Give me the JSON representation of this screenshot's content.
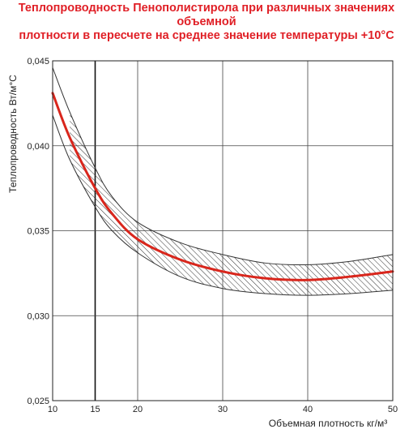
{
  "title_line1": "Теплопроводность Пенополистирола при различных значениях объемной",
  "title_line2": "плотности в пересчете на среднее значение температуры +10°С",
  "chart_data": {
    "type": "line",
    "title": "Теплопроводность Пенополистирола при различных значениях объемной плотности в пересчете на среднее значение температуры +10°С",
    "xlabel": "Объемная плотность кг/м³",
    "ylabel": "Теплопроводность Вт/м°С",
    "xlim": [
      10,
      50
    ],
    "ylim": [
      0.025,
      0.045
    ],
    "x_ticks": [
      "10",
      "15",
      "20",
      "30",
      "40",
      "50"
    ],
    "y_ticks": [
      "0,025",
      "0,030",
      "0,035",
      "0,040",
      "0,045"
    ],
    "grid": true,
    "highlight_x": 15,
    "series": [
      {
        "role": "mean",
        "color": "#d9261c",
        "x": [
          10,
          12,
          15,
          17,
          20,
          25,
          30,
          35,
          40,
          45,
          50
        ],
        "y": [
          0.0431,
          0.0405,
          0.0375,
          0.036,
          0.0345,
          0.0333,
          0.0326,
          0.0322,
          0.0321,
          0.0323,
          0.0326
        ]
      },
      {
        "role": "upper-bound",
        "color": "#333333",
        "x": [
          10,
          12,
          15,
          17,
          20,
          25,
          30,
          35,
          40,
          45,
          50
        ],
        "y": [
          0.0446,
          0.042,
          0.0387,
          0.037,
          0.0355,
          0.0343,
          0.0336,
          0.0331,
          0.033,
          0.0332,
          0.0336
        ]
      },
      {
        "role": "lower-bound",
        "color": "#333333",
        "x": [
          10,
          12,
          15,
          17,
          20,
          25,
          30,
          35,
          40,
          45,
          50
        ],
        "y": [
          0.0418,
          0.0392,
          0.0364,
          0.035,
          0.0337,
          0.0323,
          0.0316,
          0.0313,
          0.0312,
          0.0313,
          0.0315
        ]
      }
    ]
  }
}
